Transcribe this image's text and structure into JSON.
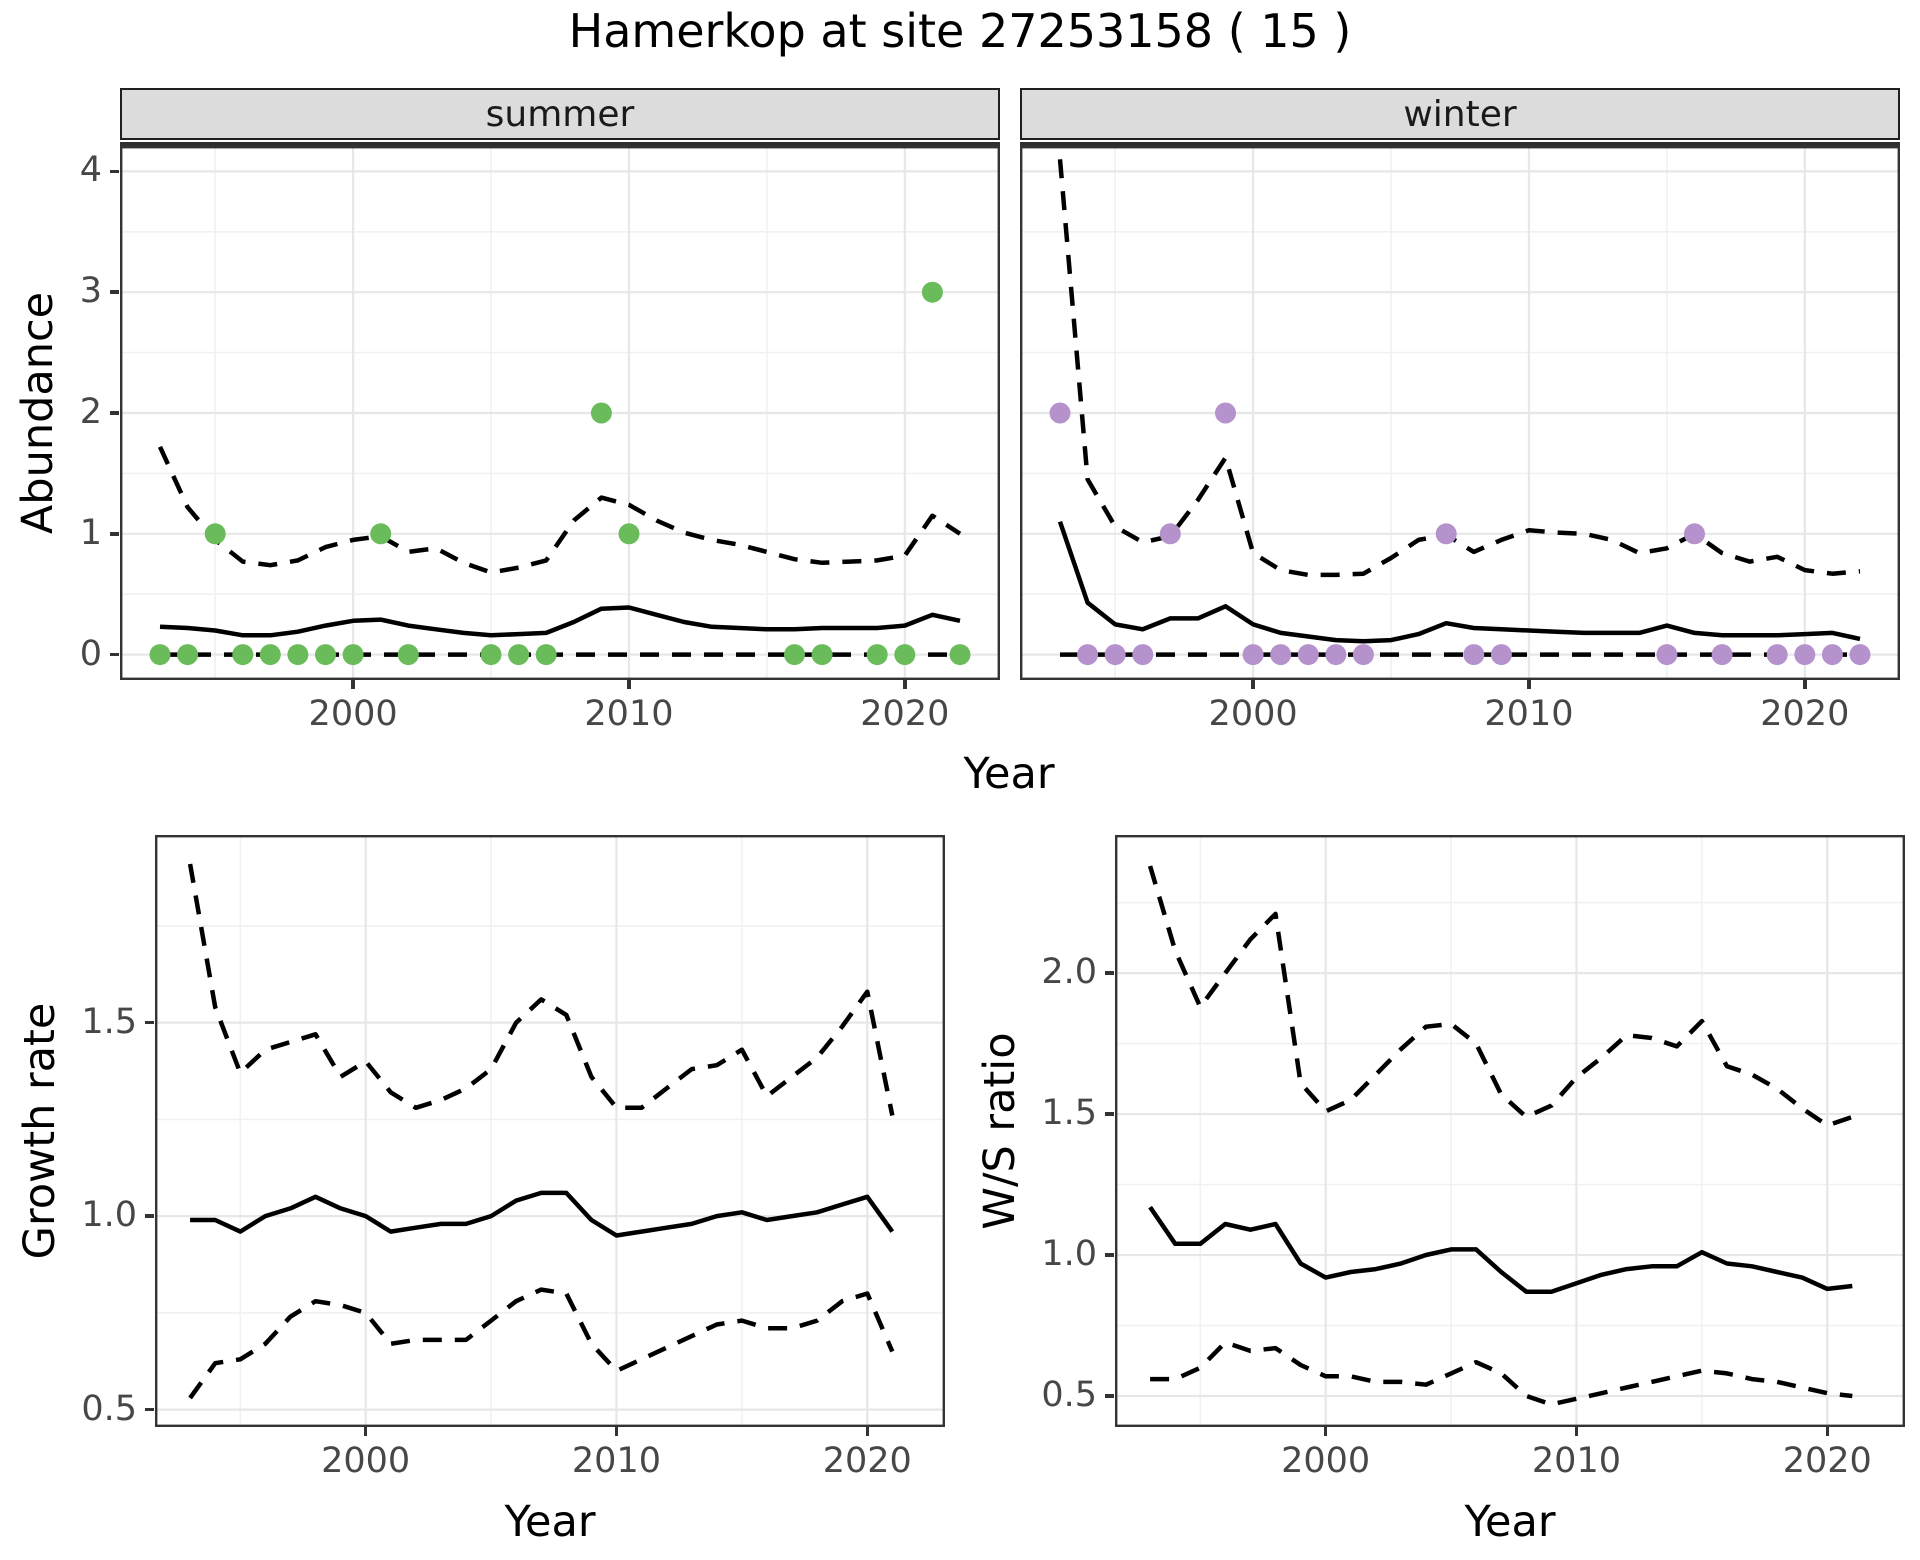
{
  "title": "Hamerkop at site 27253158 ( 15 )",
  "colors": {
    "summer_points": "#6abc5b",
    "winter_points": "#b592cb",
    "line": "#000000",
    "strip_bg": "#dcdcdc",
    "grid_major": "#e7e7e7",
    "grid_minor": "#f1f1f1",
    "axis_text": "#474747",
    "panel_border": "#333333"
  },
  "axes": {
    "shared_x_label": "Year",
    "abundance_y_label": "Abundance"
  },
  "chart_data": [
    {
      "id": "abundance_summer",
      "type": "line",
      "facet_label": "summer",
      "ylabel": "Abundance",
      "xlabel": "Year",
      "xlim": [
        1991.55,
        2023.45
      ],
      "ylim": [
        -0.21,
        4.21
      ],
      "xticks": {
        "values": [
          2000,
          2010,
          2020
        ],
        "labels": [
          "2000",
          "2010",
          "2020"
        ]
      },
      "yticks": {
        "values": [
          0,
          1,
          2,
          3,
          4
        ],
        "labels": [
          "0",
          "1",
          "2",
          "3",
          "4"
        ]
      },
      "x": [
        1993,
        1994,
        1995,
        1996,
        1997,
        1998,
        1999,
        2000,
        2001,
        2002,
        2003,
        2004,
        2005,
        2006,
        2007,
        2008,
        2009,
        2010,
        2011,
        2012,
        2013,
        2014,
        2015,
        2016,
        2017,
        2018,
        2019,
        2020,
        2021,
        2022
      ],
      "series": [
        {
          "name": "upper-dashed",
          "style": "dashed",
          "values": [
            1.72,
            1.22,
            0.95,
            0.77,
            0.74,
            0.78,
            0.89,
            0.95,
            0.98,
            0.85,
            0.88,
            0.76,
            0.68,
            0.72,
            0.78,
            1.11,
            1.3,
            1.24,
            1.11,
            1.01,
            0.95,
            0.91,
            0.85,
            0.79,
            0.76,
            0.77,
            0.78,
            0.82,
            1.15,
            1.0
          ]
        },
        {
          "name": "lower-dashed",
          "style": "dashed",
          "values": [
            0,
            0,
            0,
            0,
            0,
            0,
            0,
            0,
            0,
            0,
            0,
            0,
            0,
            0,
            0,
            0,
            0,
            0,
            0,
            0,
            0,
            0,
            0,
            0,
            0,
            0,
            0,
            0,
            0,
            0
          ]
        },
        {
          "name": "mean-solid",
          "style": "solid",
          "values": [
            0.23,
            0.22,
            0.2,
            0.16,
            0.16,
            0.19,
            0.24,
            0.28,
            0.29,
            0.24,
            0.21,
            0.18,
            0.16,
            0.17,
            0.18,
            0.27,
            0.38,
            0.39,
            0.33,
            0.27,
            0.23,
            0.22,
            0.21,
            0.21,
            0.22,
            0.22,
            0.22,
            0.24,
            0.33,
            0.28
          ]
        }
      ],
      "points": {
        "color": "#6abc5b",
        "x": [
          1993,
          1994,
          1995,
          1996,
          1997,
          1998,
          1999,
          2000,
          2001,
          2002,
          2005,
          2006,
          2007,
          2009,
          2010,
          2016,
          2017,
          2019,
          2020,
          2021,
          2022
        ],
        "y": [
          0,
          0,
          1,
          0,
          0,
          0,
          0,
          0,
          1,
          0,
          0,
          0,
          0,
          2,
          1,
          0,
          0,
          0,
          0,
          3,
          0
        ]
      }
    },
    {
      "id": "abundance_winter",
      "type": "line",
      "facet_label": "winter",
      "ylabel": "Abundance",
      "xlabel": "Year",
      "xlim": [
        1991.55,
        2023.45
      ],
      "ylim": [
        -0.21,
        4.21
      ],
      "xticks": {
        "values": [
          2000,
          2010,
          2020
        ],
        "labels": [
          "2000",
          "2010",
          "2020"
        ]
      },
      "yticks": {
        "values": [
          0,
          1,
          2,
          3,
          4
        ],
        "labels": [
          "0",
          "1",
          "2",
          "3",
          "4"
        ]
      },
      "x": [
        1993,
        1994,
        1995,
        1996,
        1997,
        1998,
        1999,
        2000,
        2001,
        2002,
        2003,
        2004,
        2005,
        2006,
        2007,
        2008,
        2009,
        2010,
        2011,
        2012,
        2013,
        2014,
        2015,
        2016,
        2017,
        2018,
        2019,
        2020,
        2021,
        2022
      ],
      "series": [
        {
          "name": "upper-dashed",
          "style": "dashed",
          "values": [
            4.1,
            1.45,
            1.06,
            0.93,
            0.98,
            1.28,
            1.63,
            0.84,
            0.7,
            0.66,
            0.66,
            0.67,
            0.8,
            0.95,
            0.99,
            0.85,
            0.95,
            1.03,
            1.01,
            1.0,
            0.95,
            0.84,
            0.88,
            1.0,
            0.84,
            0.77,
            0.81,
            0.7,
            0.67,
            0.69
          ]
        },
        {
          "name": "lower-dashed",
          "style": "dashed",
          "values": [
            0,
            0,
            0,
            0,
            0,
            0,
            0,
            0,
            0,
            0,
            0,
            0,
            0,
            0,
            0,
            0,
            0,
            0,
            0,
            0,
            0,
            0,
            0,
            0,
            0,
            0,
            0,
            0,
            0,
            0
          ]
        },
        {
          "name": "mean-solid",
          "style": "solid",
          "values": [
            1.1,
            0.43,
            0.25,
            0.21,
            0.3,
            0.3,
            0.4,
            0.25,
            0.18,
            0.15,
            0.12,
            0.11,
            0.12,
            0.17,
            0.26,
            0.22,
            0.21,
            0.2,
            0.19,
            0.18,
            0.18,
            0.18,
            0.24,
            0.18,
            0.16,
            0.16,
            0.16,
            0.17,
            0.18,
            0.13
          ]
        }
      ],
      "points": {
        "color": "#b592cb",
        "x": [
          1993,
          1994,
          1995,
          1996,
          1997,
          1999,
          2000,
          2001,
          2002,
          2003,
          2004,
          2007,
          2008,
          2009,
          2015,
          2016,
          2017,
          2019,
          2020,
          2021,
          2022
        ],
        "y": [
          2,
          0,
          0,
          0,
          1,
          2,
          0,
          0,
          0,
          0,
          0,
          1,
          0,
          0,
          0,
          1,
          0,
          0,
          0,
          0,
          0
        ]
      }
    },
    {
      "id": "growth_rate",
      "type": "line",
      "ylabel": "Growth rate",
      "xlabel": "Year",
      "xlim": [
        1991.6,
        2023.1
      ],
      "ylim": [
        0.455,
        1.985
      ],
      "xticks": {
        "values": [
          2000,
          2010,
          2020
        ],
        "labels": [
          "2000",
          "2010",
          "2020"
        ]
      },
      "yticks": {
        "values": [
          0.5,
          1.0,
          1.5
        ],
        "labels": [
          "0.5",
          "1.0",
          "1.5"
        ]
      },
      "x": [
        1993,
        1994,
        1995,
        1996,
        1997,
        1998,
        1999,
        2000,
        2001,
        2002,
        2003,
        2004,
        2005,
        2006,
        2007,
        2008,
        2009,
        2010,
        2011,
        2012,
        2013,
        2014,
        2015,
        2016,
        2017,
        2018,
        2019,
        2020,
        2021
      ],
      "series": [
        {
          "name": "upper-dashed",
          "style": "dashed",
          "values": [
            1.91,
            1.54,
            1.37,
            1.43,
            1.45,
            1.47,
            1.36,
            1.4,
            1.32,
            1.28,
            1.3,
            1.33,
            1.38,
            1.5,
            1.56,
            1.52,
            1.36,
            1.28,
            1.28,
            1.33,
            1.38,
            1.39,
            1.43,
            1.31,
            1.36,
            1.41,
            1.49,
            1.58,
            1.26
          ]
        },
        {
          "name": "lower-dashed",
          "style": "dashed",
          "values": [
            0.53,
            0.62,
            0.63,
            0.67,
            0.74,
            0.78,
            0.77,
            0.75,
            0.67,
            0.68,
            0.68,
            0.68,
            0.73,
            0.78,
            0.81,
            0.8,
            0.67,
            0.6,
            0.63,
            0.66,
            0.69,
            0.72,
            0.73,
            0.71,
            0.71,
            0.73,
            0.78,
            0.8,
            0.65
          ]
        },
        {
          "name": "mean-solid",
          "style": "solid",
          "values": [
            0.99,
            0.99,
            0.96,
            1.0,
            1.02,
            1.05,
            1.02,
            1.0,
            0.96,
            0.97,
            0.98,
            0.98,
            1.0,
            1.04,
            1.06,
            1.06,
            0.99,
            0.95,
            0.96,
            0.97,
            0.98,
            1.0,
            1.01,
            0.99,
            1.0,
            1.01,
            1.03,
            1.05,
            0.96
          ]
        }
      ],
      "points": null
    },
    {
      "id": "ws_ratio",
      "type": "line",
      "ylabel": "W/S ratio",
      "xlabel": "Year",
      "xlim": [
        1991.6,
        2023.1
      ],
      "ylim": [
        0.39,
        2.49
      ],
      "xticks": {
        "values": [
          2000,
          2010,
          2020
        ],
        "labels": [
          "2000",
          "2010",
          "2020"
        ]
      },
      "yticks": {
        "values": [
          0.5,
          1.0,
          1.5,
          2.0
        ],
        "labels": [
          "0.5",
          "1.0",
          "1.5",
          "2.0"
        ]
      },
      "x": [
        1993,
        1994,
        1995,
        1996,
        1997,
        1998,
        1999,
        2000,
        2001,
        2002,
        2003,
        2004,
        2005,
        2006,
        2007,
        2008,
        2009,
        2010,
        2011,
        2012,
        2013,
        2014,
        2015,
        2016,
        2017,
        2018,
        2019,
        2020,
        2021
      ],
      "series": [
        {
          "name": "upper-dashed",
          "style": "dashed",
          "values": [
            2.38,
            2.08,
            1.88,
            2.0,
            2.12,
            2.21,
            1.61,
            1.51,
            1.55,
            1.64,
            1.73,
            1.81,
            1.82,
            1.75,
            1.57,
            1.49,
            1.53,
            1.63,
            1.7,
            1.78,
            1.77,
            1.74,
            1.83,
            1.67,
            1.64,
            1.59,
            1.52,
            1.46,
            1.49
          ]
        },
        {
          "name": "lower-dashed",
          "style": "dashed",
          "values": [
            0.56,
            0.56,
            0.6,
            0.69,
            0.66,
            0.67,
            0.61,
            0.57,
            0.57,
            0.55,
            0.55,
            0.54,
            0.58,
            0.62,
            0.58,
            0.5,
            0.47,
            0.49,
            0.51,
            0.53,
            0.55,
            0.57,
            0.59,
            0.58,
            0.56,
            0.55,
            0.53,
            0.51,
            0.5
          ]
        },
        {
          "name": "mean-solid",
          "style": "solid",
          "values": [
            1.17,
            1.04,
            1.04,
            1.11,
            1.09,
            1.11,
            0.97,
            0.92,
            0.94,
            0.95,
            0.97,
            1.0,
            1.02,
            1.02,
            0.94,
            0.87,
            0.87,
            0.9,
            0.93,
            0.95,
            0.96,
            0.96,
            1.01,
            0.97,
            0.96,
            0.94,
            0.92,
            0.88,
            0.89
          ]
        }
      ],
      "points": null
    }
  ]
}
